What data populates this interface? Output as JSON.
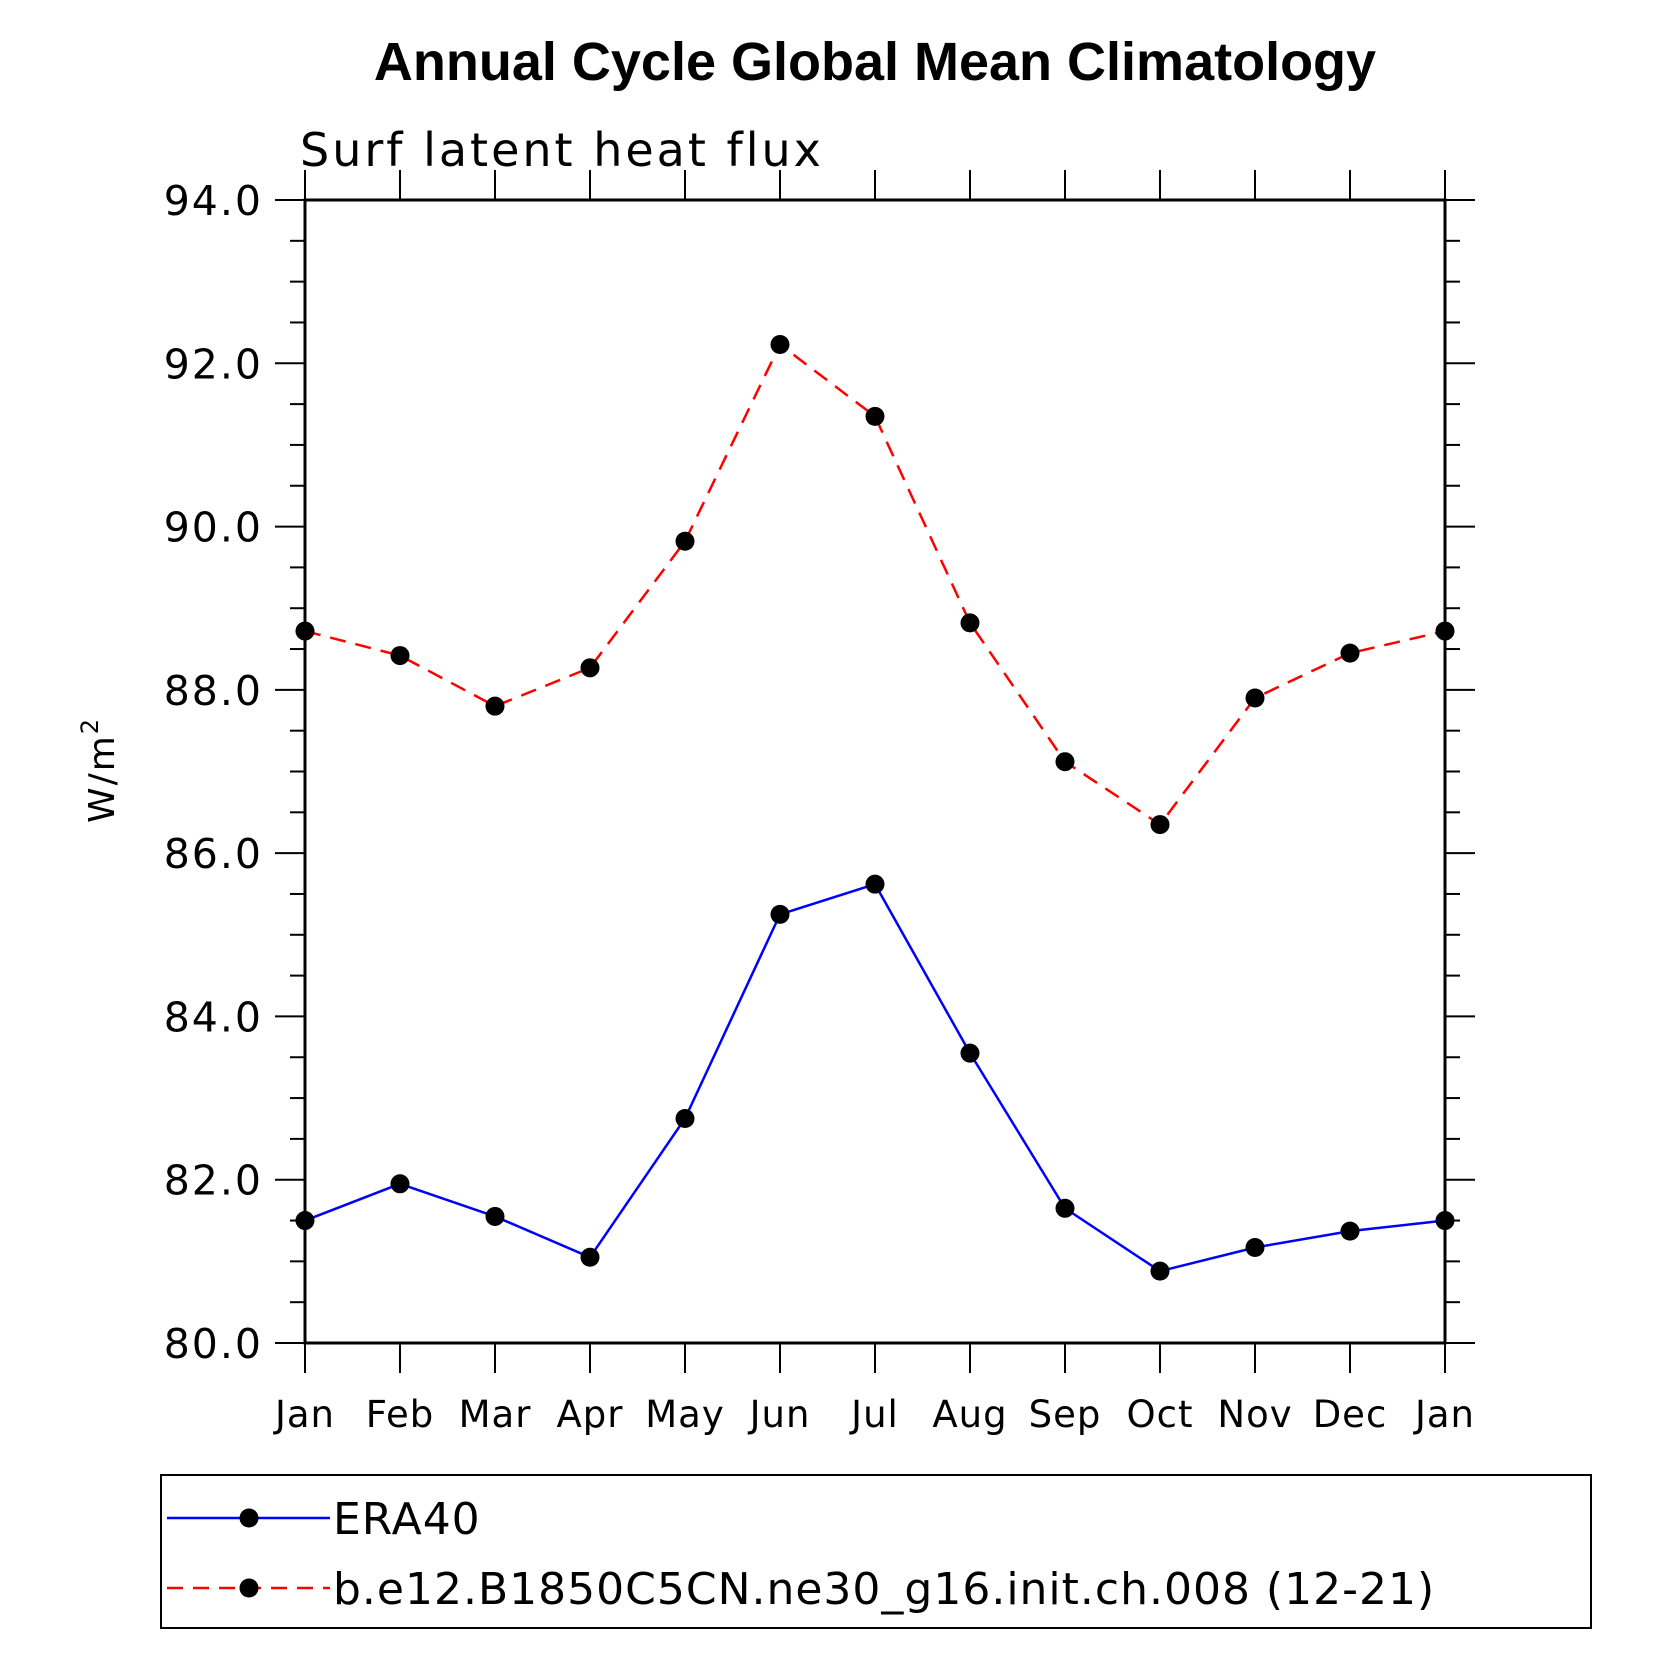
{
  "chart_data": {
    "type": "line",
    "title": "Annual Cycle Global Mean Climatology",
    "subtitle": "Surf latent heat flux",
    "ylabel": "W/m",
    "ylabel_sup": "2",
    "xlabel": "",
    "ylim": [
      80,
      94
    ],
    "yticks": [
      "80.0",
      "82.0",
      "84.0",
      "86.0",
      "88.0",
      "90.0",
      "92.0",
      "94.0"
    ],
    "categories": [
      "Jan",
      "Feb",
      "Mar",
      "Apr",
      "May",
      "Jun",
      "Jul",
      "Aug",
      "Sep",
      "Oct",
      "Nov",
      "Dec",
      "Jan"
    ],
    "grid": false,
    "legend_position": "bottom",
    "series": [
      {
        "name": "ERA40",
        "color": "#0000ff",
        "line_style": "solid",
        "marker": "filled-circle",
        "values": [
          81.5,
          81.95,
          81.55,
          81.05,
          82.75,
          85.25,
          85.62,
          83.55,
          81.65,
          80.88,
          81.17,
          81.37,
          81.5
        ]
      },
      {
        "name": "b.e12.B1850C5CN.ne30_g16.init.ch.008 (12-21)",
        "color": "#ff0000",
        "line_style": "dashed",
        "marker": "filled-circle",
        "values": [
          88.72,
          88.42,
          87.8,
          88.27,
          89.82,
          92.23,
          91.35,
          88.82,
          87.12,
          86.35,
          87.9,
          88.45,
          88.72
        ]
      }
    ]
  }
}
